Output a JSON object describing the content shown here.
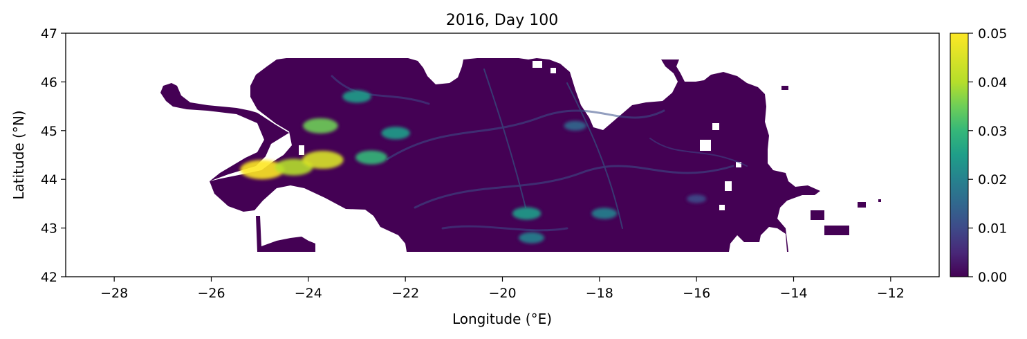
{
  "chart_data": {
    "type": "heatmap",
    "title": "2016, Day 100",
    "xlabel": "Longitude (°E)",
    "ylabel": "Latitude (°N)",
    "xlim": [
      -29,
      -11
    ],
    "ylim": [
      42,
      47
    ],
    "x_ticks": [
      -28,
      -26,
      -24,
      -22,
      -20,
      -18,
      -16,
      -14,
      -12
    ],
    "y_ticks": [
      42,
      43,
      44,
      45,
      46,
      47
    ],
    "x_tick_labels": [
      "−28",
      "−26",
      "−24",
      "−22",
      "−20",
      "−18",
      "−16",
      "−14",
      "−12"
    ],
    "y_tick_labels": [
      "42",
      "43",
      "44",
      "45",
      "46",
      "47"
    ],
    "colorbar": {
      "colormap": "viridis",
      "range": [
        0,
        0.05
      ],
      "ticks": [
        0,
        0.01,
        0.02,
        0.03,
        0.04,
        0.05
      ],
      "tick_labels": [
        "0.00",
        "0.01",
        "0.02",
        "0.03",
        "0.04",
        "0.05"
      ]
    },
    "field_extent": {
      "lon": [
        -27.1,
        -12.2
      ],
      "lat": [
        42.5,
        46.5
      ]
    },
    "field_features": [
      {
        "lon": -24.95,
        "lat": 44.2,
        "value": 0.05
      },
      {
        "lon": -24.3,
        "lat": 44.25,
        "value": 0.04
      },
      {
        "lon": -23.7,
        "lat": 44.4,
        "value": 0.045
      },
      {
        "lon": -23.75,
        "lat": 45.1,
        "value": 0.035
      },
      {
        "lon": -22.7,
        "lat": 44.45,
        "value": 0.03
      },
      {
        "lon": -23.0,
        "lat": 45.7,
        "value": 0.025
      },
      {
        "lon": -22.2,
        "lat": 44.95,
        "value": 0.025
      },
      {
        "lon": -19.5,
        "lat": 43.3,
        "value": 0.025
      },
      {
        "lon": -17.9,
        "lat": 43.3,
        "value": 0.02
      },
      {
        "lon": -19.4,
        "lat": 42.8,
        "value": 0.02
      },
      {
        "lon": -18.5,
        "lat": 45.1,
        "value": 0.015
      },
      {
        "lon": -16.0,
        "lat": 43.6,
        "value": 0.01
      }
    ]
  }
}
